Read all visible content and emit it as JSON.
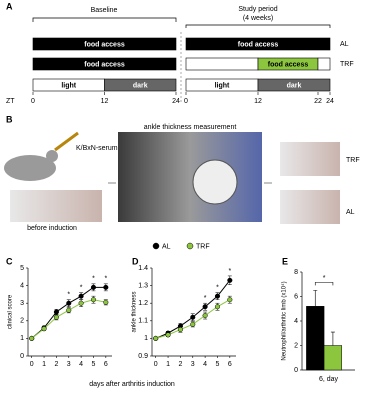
{
  "panel_a": {
    "label": "A",
    "baseline": "Baseline",
    "study_period": [
      "Study period",
      "(4 weeks)"
    ],
    "zt_label": "ZT",
    "zt_ticks_baseline": [
      0,
      12,
      24
    ],
    "zt_ticks_study": [
      0,
      12,
      22,
      24
    ],
    "rows": [
      {
        "name": "AL",
        "baseline": [
          {
            "from": 0,
            "to": 24,
            "fill": "#000000",
            "text": "food access"
          }
        ],
        "study": [
          {
            "from": 0,
            "to": 24,
            "fill": "#000000",
            "text": "food access"
          }
        ]
      },
      {
        "name": "TRF",
        "baseline": [
          {
            "from": 0,
            "to": 24,
            "fill": "#000000",
            "text": "food access"
          }
        ],
        "study": [
          {
            "from": 0,
            "to": 12,
            "fill": "#ffffff"
          },
          {
            "from": 12,
            "to": 22,
            "fill": "#8cc63f",
            "text": "food access"
          },
          {
            "from": 22,
            "to": 24,
            "fill": "#ffffff"
          }
        ]
      },
      {
        "baseline": [
          {
            "from": 0,
            "to": 12,
            "fill": "#ffffff",
            "text": "light"
          },
          {
            "from": 12,
            "to": 24,
            "fill": "#666666",
            "text": "dark"
          }
        ],
        "study": [
          {
            "from": 0,
            "to": 12,
            "fill": "#ffffff",
            "text": "light"
          },
          {
            "from": 12,
            "to": 24,
            "fill": "#666666",
            "text": "dark"
          }
        ]
      }
    ]
  },
  "panel_b": {
    "label": "B",
    "injection": "K/BxN-serum",
    "before": "before induction",
    "measurement": "ankle thickness measurement",
    "trf": "TRF",
    "al": "AL"
  },
  "chart_data": [
    {
      "type": "line",
      "label": "C",
      "y_label": "clinical score",
      "x_label": "days after arthritis induction",
      "x": [
        0,
        1,
        2,
        3,
        4,
        5,
        6
      ],
      "xlim": [
        -0.3,
        6.5
      ],
      "xticks": [
        0,
        1,
        2,
        3,
        4,
        5,
        6
      ],
      "ylim": [
        0,
        5
      ],
      "yticks": [
        0,
        1,
        2,
        3,
        4,
        5
      ],
      "series": [
        {
          "name": "AL",
          "color": "#000000",
          "values": [
            1,
            1.6,
            2.5,
            3.0,
            3.4,
            3.9,
            3.9
          ],
          "errors": [
            0,
            0.1,
            0.15,
            0.2,
            0.2,
            0.2,
            0.2
          ]
        },
        {
          "name": "TRF",
          "color": "#8cc63f",
          "values": [
            1,
            1.55,
            2.2,
            2.6,
            3.0,
            3.2,
            3.05
          ],
          "errors": [
            0,
            0.1,
            0.15,
            0.15,
            0.2,
            0.2,
            0.15
          ]
        }
      ],
      "annotations": [
        {
          "x": 3,
          "text": "*"
        },
        {
          "x": 4,
          "text": "*"
        },
        {
          "x": 5,
          "text": "*"
        },
        {
          "x": 6,
          "text": "*"
        }
      ]
    },
    {
      "type": "line",
      "label": "D",
      "y_label": "ankle thickness",
      "x": [
        0,
        1,
        2,
        3,
        4,
        5,
        6
      ],
      "xlim": [
        -0.3,
        6.5
      ],
      "xticks": [
        0,
        1,
        2,
        3,
        4,
        5,
        6
      ],
      "ylim": [
        0.9,
        1.4
      ],
      "yticks": [
        0.9,
        1.0,
        1.1,
        1.2,
        1.3,
        1.4
      ],
      "series": [
        {
          "name": "AL",
          "color": "#000000",
          "values": [
            1.0,
            1.03,
            1.07,
            1.12,
            1.18,
            1.24,
            1.33
          ],
          "errors": [
            0,
            0.01,
            0.015,
            0.02,
            0.02,
            0.02,
            0.025
          ]
        },
        {
          "name": "TRF",
          "color": "#8cc63f",
          "values": [
            1.0,
            1.02,
            1.05,
            1.08,
            1.13,
            1.18,
            1.22
          ],
          "errors": [
            0,
            0.01,
            0.015,
            0.015,
            0.02,
            0.02,
            0.02
          ]
        }
      ],
      "annotations": [
        {
          "x": 4,
          "text": "*"
        },
        {
          "x": 5,
          "text": "*"
        },
        {
          "x": 6,
          "text": "*"
        }
      ]
    },
    {
      "type": "bar",
      "label": "E",
      "y_label": "Neutrophil/arthritic limb (x10⁴)",
      "categories": [
        "6, day"
      ],
      "ylim": [
        0,
        8
      ],
      "yticks": [
        0,
        2,
        4,
        6,
        8
      ],
      "series": [
        {
          "name": "AL",
          "color": "#000000",
          "values": [
            5.2
          ],
          "errors": [
            1.3
          ]
        },
        {
          "name": "TRF",
          "color": "#8cc63f",
          "values": [
            2.0
          ],
          "errors": [
            1.1
          ]
        }
      ],
      "annotations": [
        {
          "text": "*"
        }
      ]
    }
  ]
}
